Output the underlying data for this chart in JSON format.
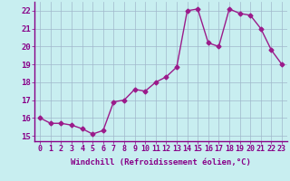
{
  "x": [
    0,
    1,
    2,
    3,
    4,
    5,
    6,
    7,
    8,
    9,
    10,
    11,
    12,
    13,
    14,
    15,
    16,
    17,
    18,
    19,
    20,
    21,
    22,
    23
  ],
  "y": [
    16.0,
    15.7,
    15.7,
    15.6,
    15.4,
    15.1,
    15.3,
    16.9,
    17.0,
    17.6,
    17.5,
    18.0,
    18.3,
    18.85,
    22.0,
    22.1,
    20.2,
    20.0,
    22.1,
    21.85,
    21.75,
    21.0,
    19.8,
    19.0
  ],
  "line_color": "#9b1a8a",
  "marker": "D",
  "markersize": 2.5,
  "linewidth": 1.0,
  "xlim": [
    -0.5,
    23.5
  ],
  "ylim": [
    14.7,
    22.5
  ],
  "yticks": [
    15,
    16,
    17,
    18,
    19,
    20,
    21,
    22
  ],
  "xtick_labels": [
    "0",
    "1",
    "2",
    "3",
    "4",
    "5",
    "6",
    "7",
    "8",
    "9",
    "10",
    "11",
    "12",
    "13",
    "14",
    "15",
    "16",
    "17",
    "18",
    "19",
    "20",
    "21",
    "22",
    "23"
  ],
  "xlabel": "Windchill (Refroidissement éolien,°C)",
  "background_color": "#c8eef0",
  "grid_color": "#a0b8cc",
  "tick_color": "#880088",
  "label_color": "#880088",
  "axis_fontsize": 6.5
}
